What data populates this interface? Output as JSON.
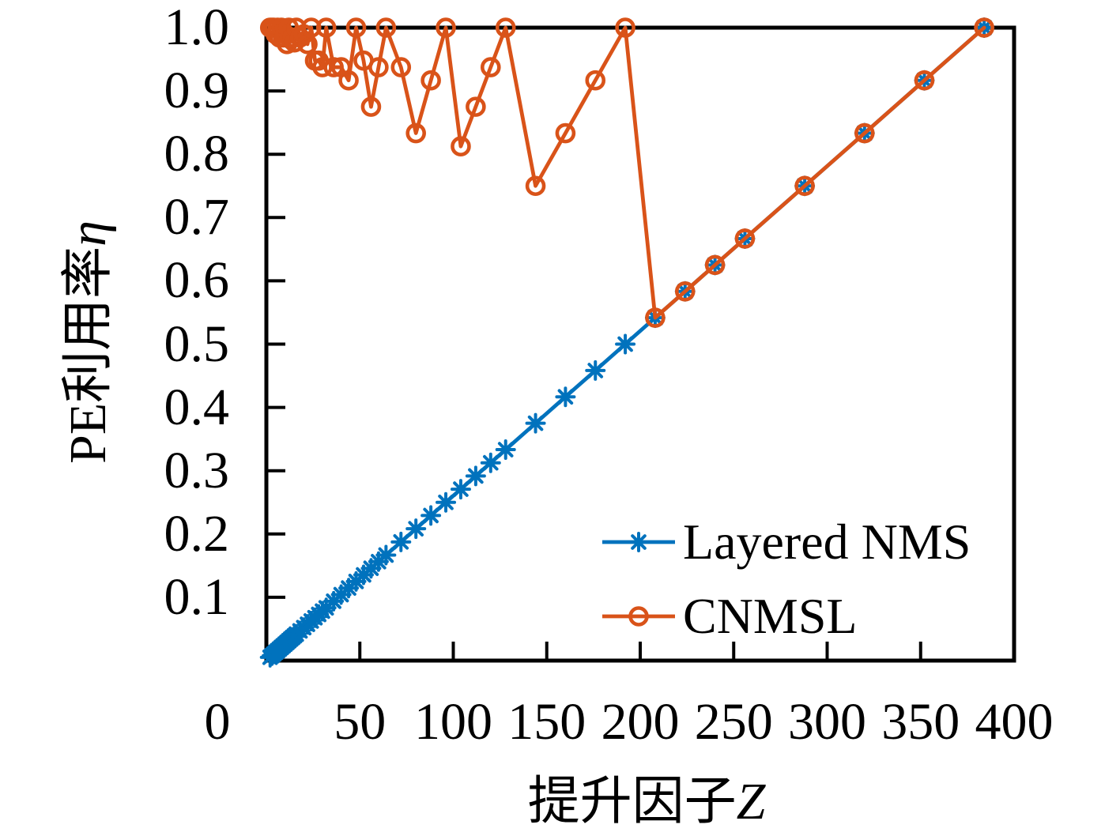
{
  "figure": {
    "background": "#ffffff",
    "axis_color": "#000000"
  },
  "chart_data": {
    "type": "line",
    "title": "",
    "xlabel": "提升因子Z",
    "xlabel_text": "提升因子",
    "xlabel_var": "Z",
    "ylabel": "PE利用率η",
    "ylabel_text": "PE利用率",
    "ylabel_var": "η",
    "origin_label": "0",
    "xlim": [
      0,
      400
    ],
    "ylim": [
      0,
      1.0
    ],
    "grid": false,
    "legend_position": "inside lower right",
    "x_ticks": [
      0,
      50,
      100,
      150,
      200,
      250,
      300,
      350,
      400
    ],
    "x_tick_labels": [
      "0",
      "50",
      "100",
      "150",
      "200",
      "250",
      "300",
      "350",
      "400"
    ],
    "y_ticks": [
      0.1,
      0.2,
      0.3,
      0.4,
      0.5,
      0.6,
      0.7,
      0.8,
      0.9,
      1.0
    ],
    "y_tick_labels": [
      "0.1",
      "0.2",
      "0.3",
      "0.4",
      "0.5",
      "0.6",
      "0.7",
      "0.8",
      "0.9",
      "1.0"
    ],
    "x": [
      2,
      3,
      4,
      5,
      6,
      7,
      8,
      9,
      10,
      11,
      12,
      13,
      14,
      15,
      16,
      18,
      20,
      22,
      24,
      26,
      28,
      30,
      32,
      36,
      40,
      44,
      48,
      52,
      56,
      60,
      64,
      72,
      80,
      88,
      96,
      104,
      112,
      120,
      128,
      144,
      160,
      176,
      192,
      208,
      224,
      240,
      256,
      288,
      320,
      352,
      384
    ],
    "series": [
      {
        "name": "Layered NMS",
        "color": "#0072BD",
        "marker": "asterisk",
        "values": [
          0.0052,
          0.0078,
          0.0104,
          0.013,
          0.0156,
          0.0182,
          0.0208,
          0.0234,
          0.026,
          0.0286,
          0.0313,
          0.0339,
          0.0365,
          0.0391,
          0.0417,
          0.0469,
          0.0521,
          0.0573,
          0.0625,
          0.0677,
          0.0729,
          0.0781,
          0.0833,
          0.0938,
          0.1042,
          0.1146,
          0.125,
          0.1354,
          0.1458,
          0.1563,
          0.1667,
          0.1875,
          0.2083,
          0.2292,
          0.25,
          0.2708,
          0.2917,
          0.3125,
          0.3333,
          0.375,
          0.4167,
          0.4583,
          0.5,
          0.5417,
          0.5833,
          0.625,
          0.6667,
          0.75,
          0.8333,
          0.9167,
          1.0
        ]
      },
      {
        "name": "CNMSL",
        "color": "#D95319",
        "marker": "circle",
        "values": [
          1.0,
          1.0,
          1.0,
          0.9896,
          1.0,
          0.9844,
          1.0,
          0.9844,
          0.9896,
          0.974,
          1.0,
          0.9818,
          0.9844,
          0.9766,
          1.0,
          0.9844,
          0.9896,
          0.974,
          1.0,
          0.9479,
          0.9479,
          0.9375,
          1.0,
          0.9375,
          0.9375,
          0.9167,
          1.0,
          0.9479,
          0.875,
          0.9375,
          1.0,
          0.9375,
          0.8333,
          0.9167,
          1.0,
          0.8125,
          0.875,
          0.9375,
          1.0,
          0.75,
          0.8333,
          0.9167,
          1.0,
          0.5417,
          0.5833,
          0.625,
          0.6667,
          0.75,
          0.8333,
          0.9167,
          1.0
        ]
      }
    ]
  }
}
